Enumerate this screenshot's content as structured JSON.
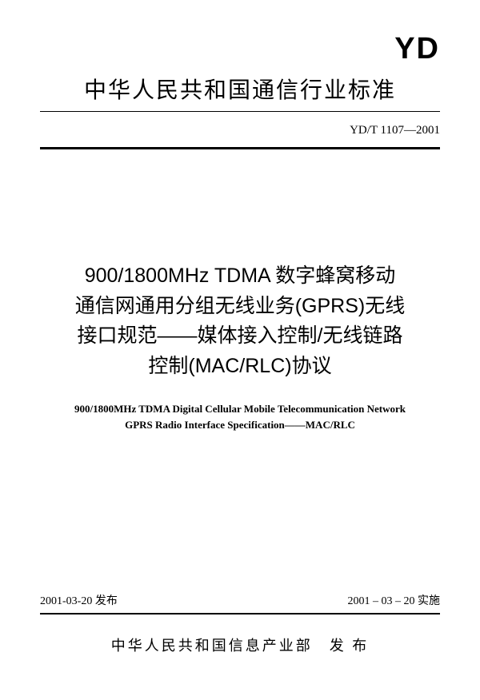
{
  "logo": "YD",
  "header_title": "中华人民共和国通信行业标准",
  "doc_number": "YD/T 1107—2001",
  "main_title_line1": "900/1800MHz TDMA 数字蜂窝移动",
  "main_title_line2": "通信网通用分组无线业务(GPRS)无线",
  "main_title_line3": "接口规范——媒体接入控制/无线链路",
  "main_title_line4": "控制(MAC/RLC)协议",
  "english_title_line1": "900/1800MHz TDMA Digital Cellular Mobile Telecommunication Network",
  "english_title_line2": "GPRS Radio Interface Specification——MAC/RLC",
  "issue_date": "2001-03-20 发布",
  "effective_date": "2001 – 03 – 20 实施",
  "publisher": "中华人民共和国信息产业部　发 布"
}
